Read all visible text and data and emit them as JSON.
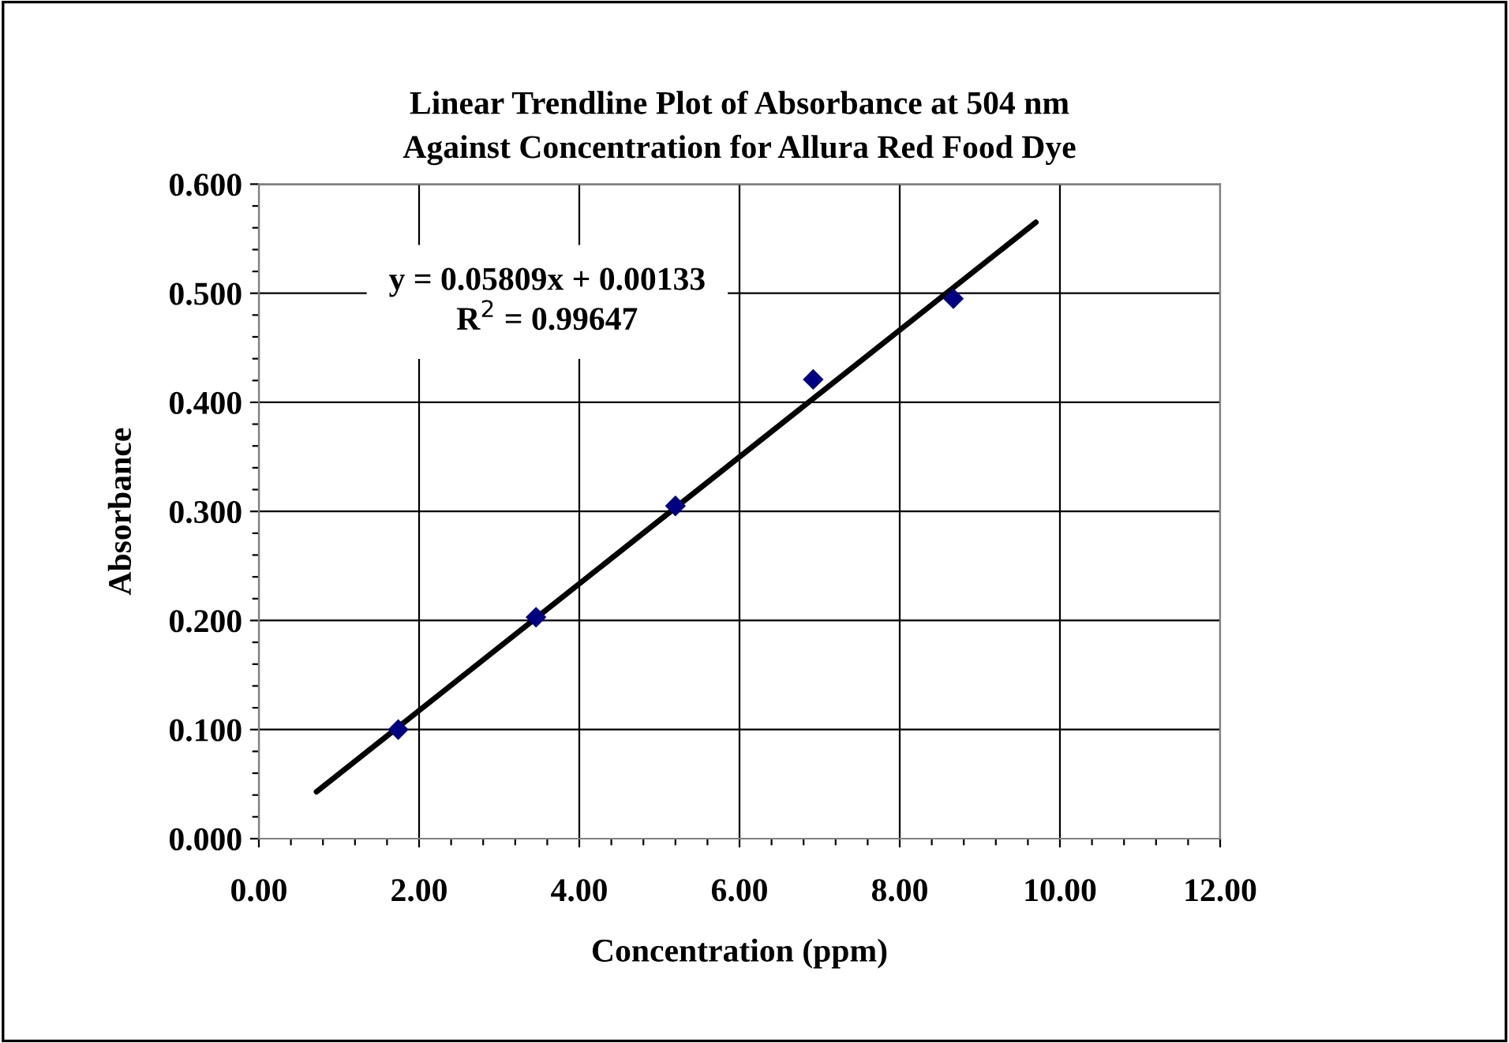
{
  "chart_data": {
    "type": "scatter",
    "title": "Linear Trendline Plot of Absorbance at 504 nm\nAgainst Concentration for Allura Red Food Dye",
    "xlabel": "Concentration (ppm)",
    "ylabel": "Absorbance",
    "x": [
      1.74,
      3.46,
      5.2,
      6.92,
      8.67
    ],
    "series": [
      {
        "color": "#000080",
        "marker": "diamond",
        "values": [
          0.1,
          0.203,
          0.305,
          0.421,
          0.495
        ]
      },
      {
        "type": "line",
        "color": "#000000",
        "marker": "none",
        "line_style": "solid",
        "x": [
          0.72,
          9.7
        ],
        "values": [
          0.043,
          0.565
        ]
      }
    ],
    "annotations": [
      "y = 0.05809x + 0.00133\nR$^{2}$ = 0.99647"
    ],
    "xlim": [
      0,
      12
    ],
    "xticks": [
      {
        "value": 0,
        "label": "0.00"
      },
      {
        "value": 2,
        "label": "2.00"
      },
      {
        "value": 4,
        "label": "4.00"
      },
      {
        "value": 6,
        "label": "6.00"
      },
      {
        "value": 8,
        "label": "8.00"
      },
      {
        "value": 10,
        "label": "10.00"
      },
      {
        "value": 12,
        "label": "12.00"
      }
    ],
    "ylim": [
      0,
      0.6
    ],
    "yticks": [
      {
        "value": 0,
        "label": "0.000"
      },
      {
        "value": 0.1,
        "label": "0.100"
      },
      {
        "value": 0.2,
        "label": "0.200"
      },
      {
        "value": 0.3,
        "label": "0.300"
      },
      {
        "value": 0.4,
        "label": "0.400"
      },
      {
        "value": 0.5,
        "label": "0.500"
      },
      {
        "value": 0.6,
        "label": "0.600"
      }
    ],
    "grid": true,
    "legend": false
  }
}
